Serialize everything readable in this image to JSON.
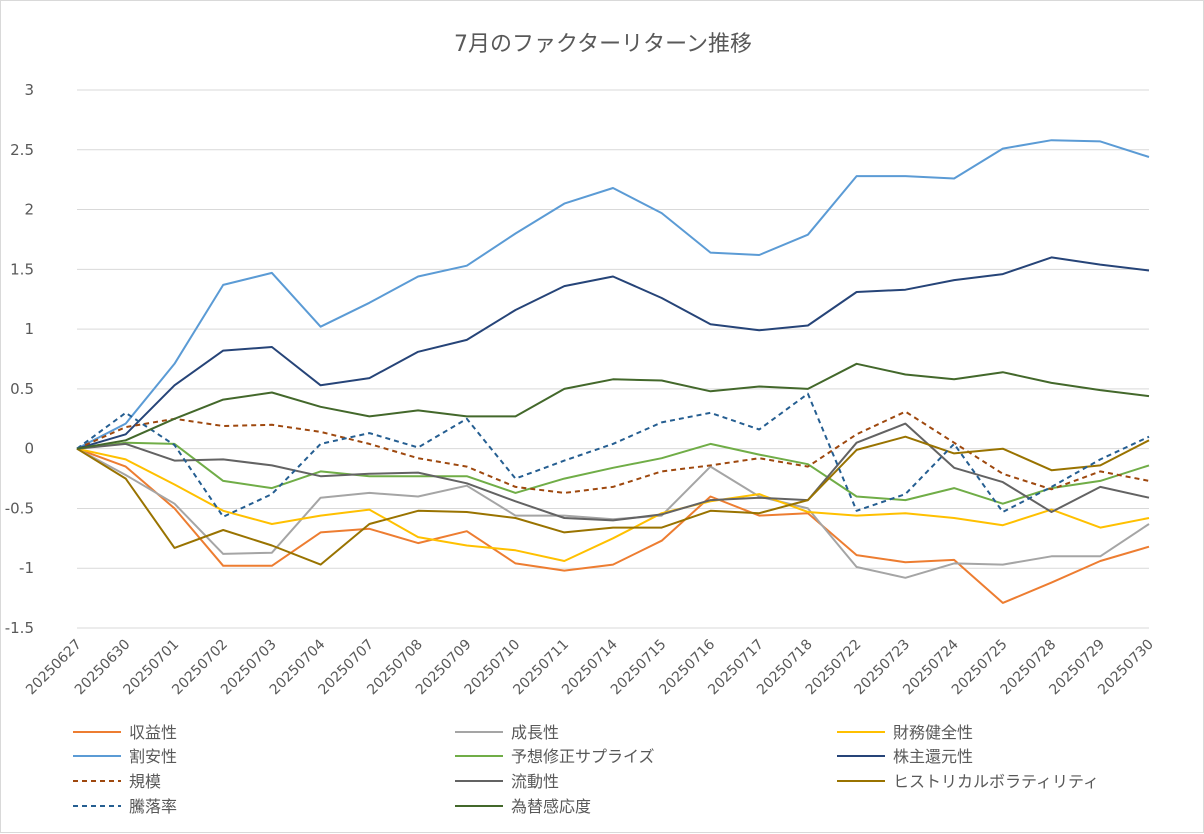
{
  "chart_data": {
    "type": "line",
    "title": "7月のファクターリターン推移",
    "xlabel": "",
    "ylabel": "",
    "ylim": [
      -1.5,
      3
    ],
    "yticks": [
      3,
      2.5,
      2,
      1.5,
      1,
      0.5,
      0,
      -0.5,
      -1,
      -1.5
    ],
    "ytick_labels": [
      "3",
      "2.5",
      "2",
      "1.5",
      "1",
      "0.5",
      "0",
      "-0.5",
      "-1",
      "-1.5"
    ],
    "grid": "horizontal",
    "legend_position": "bottom",
    "categories": [
      "20250627",
      "20250630",
      "20250701",
      "20250702",
      "20250703",
      "20250704",
      "20250707",
      "20250708",
      "20250709",
      "20250710",
      "20250711",
      "20250714",
      "20250715",
      "20250716",
      "20250717",
      "20250718",
      "20250722",
      "20250723",
      "20250724",
      "20250725",
      "20250728",
      "20250729",
      "20250730"
    ],
    "series": [
      {
        "name": "収益性",
        "color": "#ed7d31",
        "dash": false,
        "values": [
          0,
          -0.15,
          -0.5,
          -0.98,
          -0.98,
          -0.7,
          -0.67,
          -0.79,
          -0.69,
          -0.96,
          -1.02,
          -0.97,
          -0.77,
          -0.4,
          -0.56,
          -0.54,
          -0.89,
          -0.95,
          -0.93,
          -1.29,
          -1.12,
          -0.94,
          -0.82
        ]
      },
      {
        "name": "成長性",
        "color": "#a5a5a5",
        "dash": false,
        "values": [
          0,
          -0.22,
          -0.46,
          -0.88,
          -0.87,
          -0.41,
          -0.37,
          -0.4,
          -0.31,
          -0.56,
          -0.56,
          -0.59,
          -0.56,
          -0.15,
          -0.4,
          -0.5,
          -0.99,
          -1.08,
          -0.96,
          -0.97,
          -0.9,
          -0.9,
          -0.63
        ]
      },
      {
        "name": "財務健全性",
        "color": "#ffc000",
        "dash": false,
        "values": [
          0,
          -0.09,
          -0.3,
          -0.52,
          -0.63,
          -0.56,
          -0.51,
          -0.74,
          -0.81,
          -0.85,
          -0.94,
          -0.75,
          -0.54,
          -0.44,
          -0.38,
          -0.53,
          -0.56,
          -0.54,
          -0.58,
          -0.64,
          -0.51,
          -0.66,
          -0.58
        ]
      },
      {
        "name": "割安性",
        "color": "#5b9bd5",
        "dash": false,
        "values": [
          0,
          0.21,
          0.71,
          1.37,
          1.47,
          1.02,
          1.22,
          1.44,
          1.53,
          1.8,
          2.05,
          2.18,
          1.97,
          1.64,
          1.62,
          1.79,
          2.28,
          2.28,
          2.26,
          2.51,
          2.58,
          2.57,
          2.44
        ]
      },
      {
        "name": "予想修正サプライズ",
        "color": "#70ad47",
        "dash": false,
        "values": [
          0,
          0.05,
          0.04,
          -0.27,
          -0.33,
          -0.19,
          -0.23,
          -0.23,
          -0.23,
          -0.37,
          -0.25,
          -0.16,
          -0.08,
          0.04,
          -0.05,
          -0.13,
          -0.4,
          -0.43,
          -0.33,
          -0.46,
          -0.33,
          -0.27,
          -0.14
        ]
      },
      {
        "name": "株主還元性",
        "color": "#264478",
        "dash": false,
        "values": [
          0,
          0.12,
          0.53,
          0.82,
          0.85,
          0.53,
          0.59,
          0.81,
          0.91,
          1.16,
          1.36,
          1.44,
          1.26,
          1.04,
          0.99,
          1.03,
          1.31,
          1.33,
          1.41,
          1.46,
          1.6,
          1.54,
          1.49
        ]
      },
      {
        "name": "規模",
        "color": "#9e480e",
        "dash": true,
        "values": [
          0,
          0.18,
          0.25,
          0.19,
          0.2,
          0.14,
          0.04,
          -0.08,
          -0.15,
          -0.32,
          -0.37,
          -0.32,
          -0.19,
          -0.14,
          -0.08,
          -0.15,
          0.12,
          0.31,
          0.05,
          -0.21,
          -0.34,
          -0.19,
          -0.27
        ]
      },
      {
        "name": "流動性",
        "color": "#636363",
        "dash": false,
        "values": [
          0,
          0.04,
          -0.1,
          -0.09,
          -0.14,
          -0.23,
          -0.21,
          -0.2,
          -0.29,
          -0.44,
          -0.58,
          -0.6,
          -0.55,
          -0.43,
          -0.41,
          -0.43,
          0.05,
          0.21,
          -0.16,
          -0.28,
          -0.53,
          -0.32,
          -0.41
        ]
      },
      {
        "name": "ヒストリカルボラティリティ",
        "color": "#997300",
        "dash": false,
        "values": [
          0,
          -0.25,
          -0.83,
          -0.68,
          -0.81,
          -0.97,
          -0.63,
          -0.52,
          -0.53,
          -0.58,
          -0.7,
          -0.66,
          -0.66,
          -0.52,
          -0.54,
          -0.43,
          -0.01,
          0.1,
          -0.04,
          0.0,
          -0.18,
          -0.14,
          0.07
        ]
      },
      {
        "name": "騰落率",
        "color": "#255e91",
        "dash": true,
        "values": [
          0,
          0.3,
          0.03,
          -0.57,
          -0.38,
          0.04,
          0.13,
          0.01,
          0.25,
          -0.25,
          -0.1,
          0.04,
          0.22,
          0.3,
          0.16,
          0.46,
          -0.52,
          -0.38,
          0.04,
          -0.53,
          -0.32,
          -0.09,
          0.1
        ]
      },
      {
        "name": "為替感応度",
        "color": "#43682b",
        "dash": false,
        "values": [
          0,
          0.07,
          0.25,
          0.41,
          0.47,
          0.35,
          0.27,
          0.32,
          0.27,
          0.27,
          0.5,
          0.58,
          0.57,
          0.48,
          0.52,
          0.5,
          0.71,
          0.62,
          0.58,
          0.64,
          0.55,
          0.49,
          0.44
        ]
      }
    ]
  }
}
